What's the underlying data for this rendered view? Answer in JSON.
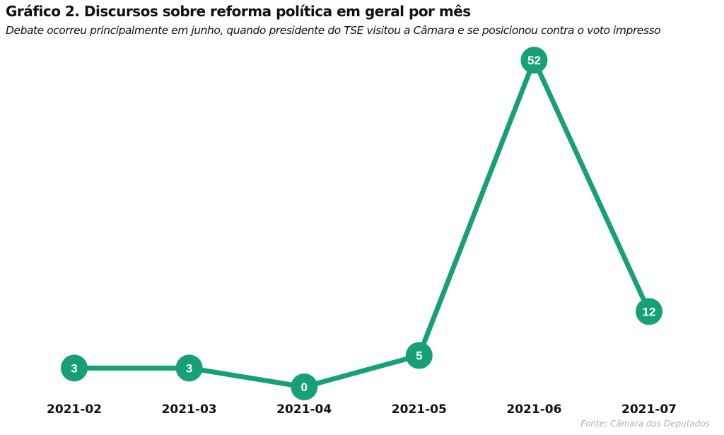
{
  "chart_data": {
    "type": "line",
    "title": "Gráfico 2. Discursos sobre reforma política em geral por mês",
    "subtitle": "Debate ocorreu principalmente em junho, quando presidente do TSE visitou a Câmara e se posicionou contra o voto impresso",
    "source": "Fonte: Câmara dos Deputados",
    "xlabel": "",
    "ylabel": "",
    "categories": [
      "2021-02",
      "2021-03",
      "2021-04",
      "2021-05",
      "2021-06",
      "2021-07"
    ],
    "series": [
      {
        "name": "Discursos",
        "values": [
          3,
          3,
          0,
          5,
          52,
          12
        ],
        "color": "#17a077"
      }
    ],
    "ylim": [
      0,
      52
    ],
    "grid": false,
    "legend": "none",
    "data_labels": true
  }
}
